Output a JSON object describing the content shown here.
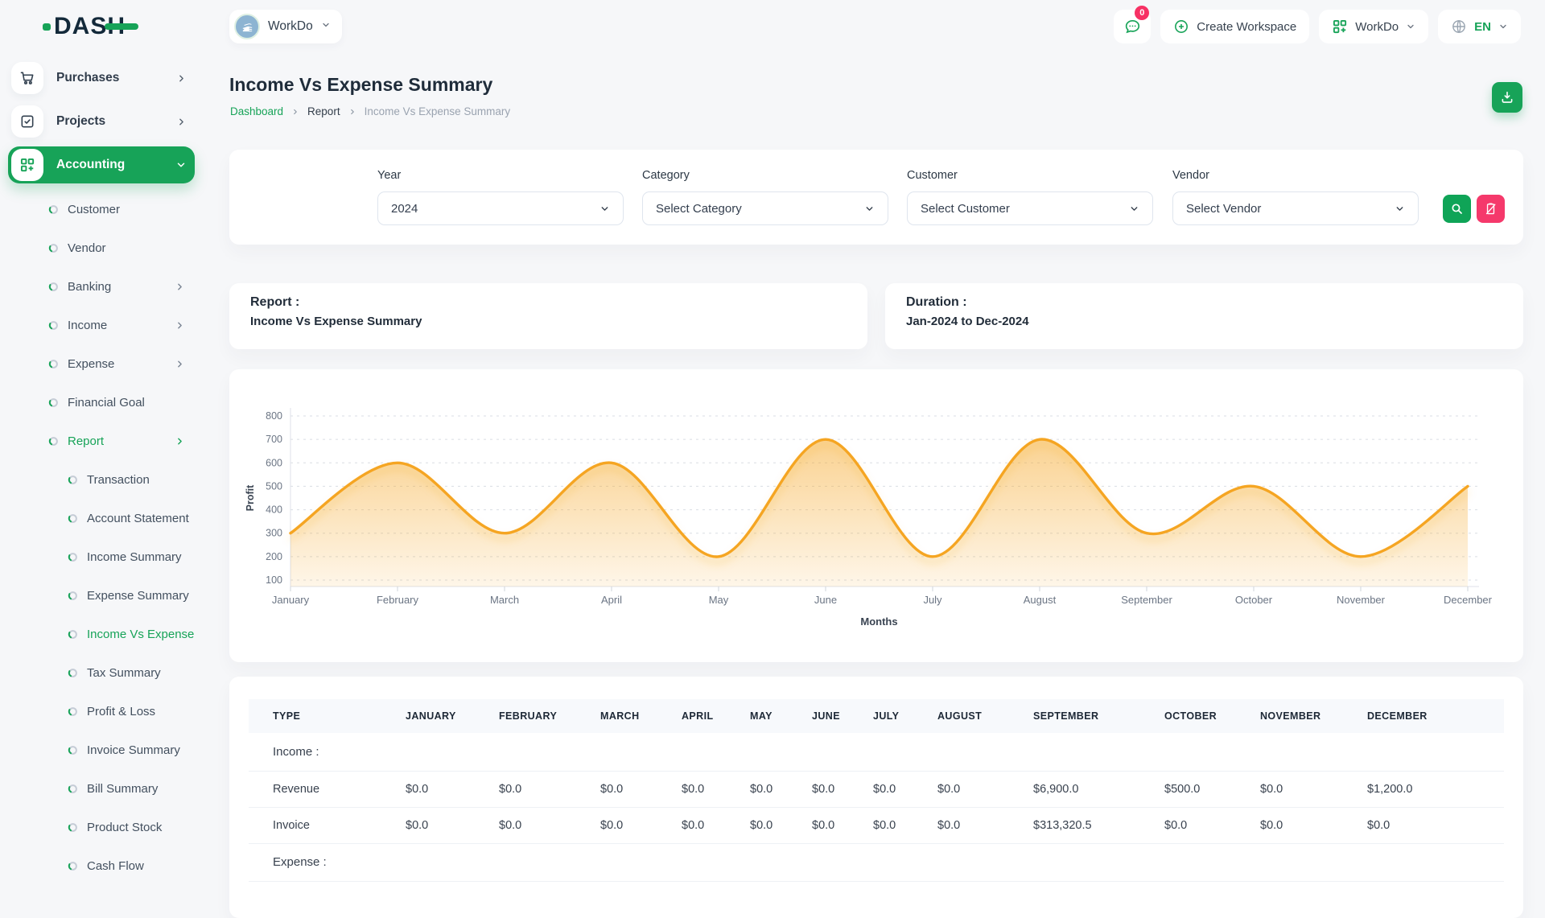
{
  "brand": {
    "name": "DASH"
  },
  "header": {
    "workspace_switcher_label": "WorkDo",
    "messages_badge": "0",
    "create_workspace_label": "Create Workspace",
    "app_menu_label": "WorkDo",
    "language": "EN"
  },
  "sidebar": {
    "items": [
      {
        "label": "Purchases",
        "level": "top",
        "icon": "cart-icon",
        "chevron": "right"
      },
      {
        "label": "Projects",
        "level": "top",
        "icon": "check-square-icon",
        "chevron": "right"
      },
      {
        "label": "Accounting",
        "level": "top",
        "icon": "grid-plus-icon",
        "chevron": "down",
        "active": true
      },
      {
        "label": "Customer",
        "level": "sub"
      },
      {
        "label": "Vendor",
        "level": "sub"
      },
      {
        "label": "Banking",
        "level": "sub",
        "chevron": "right"
      },
      {
        "label": "Income",
        "level": "sub",
        "chevron": "right"
      },
      {
        "label": "Expense",
        "level": "sub",
        "chevron": "right"
      },
      {
        "label": "Financial Goal",
        "level": "sub"
      },
      {
        "label": "Report",
        "level": "sub",
        "chevron": "right",
        "active": true
      },
      {
        "label": "Transaction",
        "level": "subsub"
      },
      {
        "label": "Account Statement",
        "level": "subsub"
      },
      {
        "label": "Income Summary",
        "level": "subsub"
      },
      {
        "label": "Expense Summary",
        "level": "subsub"
      },
      {
        "label": "Income Vs Expense",
        "level": "subsub",
        "active": true
      },
      {
        "label": "Tax Summary",
        "level": "subsub"
      },
      {
        "label": "Profit & Loss",
        "level": "subsub"
      },
      {
        "label": "Invoice Summary",
        "level": "subsub"
      },
      {
        "label": "Bill Summary",
        "level": "subsub"
      },
      {
        "label": "Product Stock",
        "level": "subsub"
      },
      {
        "label": "Cash Flow",
        "level": "subsub"
      }
    ]
  },
  "page": {
    "title": "Income Vs Expense Summary",
    "breadcrumb": [
      "Dashboard",
      "Report",
      "Income Vs Expense Summary"
    ]
  },
  "filters": {
    "fields": [
      {
        "label": "Year",
        "value": "2024"
      },
      {
        "label": "Category",
        "value": "Select Category"
      },
      {
        "label": "Customer",
        "value": "Select Customer"
      },
      {
        "label": "Vendor",
        "value": "Select Vendor"
      }
    ]
  },
  "report_card": {
    "label": "Report :",
    "value": "Income Vs Expense Summary"
  },
  "duration_card": {
    "label": "Duration :",
    "value": "Jan-2024 to Dec-2024"
  },
  "chart_data": {
    "type": "area",
    "x": [
      "January",
      "February",
      "March",
      "April",
      "May",
      "June",
      "July",
      "August",
      "September",
      "October",
      "November",
      "December"
    ],
    "series": [
      {
        "name": "Profit",
        "values": [
          300,
          600,
          300,
          600,
          200,
          700,
          200,
          700,
          300,
          500,
          200,
          500
        ]
      }
    ],
    "xlabel": "Months",
    "ylabel": "Profit",
    "ylim": [
      100,
      800
    ],
    "yticks": [
      800,
      700,
      600,
      500,
      400,
      300,
      200,
      100
    ],
    "grid": "dashed-horizontal",
    "legend": "none",
    "line_color": "#f5a522",
    "fill": "orange-gradient"
  },
  "table": {
    "headers": [
      "TYPE",
      "JANUARY",
      "FEBRUARY",
      "MARCH",
      "APRIL",
      "MAY",
      "JUNE",
      "JULY",
      "AUGUST",
      "SEPTEMBER",
      "OCTOBER",
      "NOVEMBER",
      "DECEMBER"
    ],
    "rows": [
      {
        "kind": "section",
        "label": "Income :"
      },
      {
        "kind": "data",
        "label": "Revenue",
        "values": [
          "$0.0",
          "$0.0",
          "$0.0",
          "$0.0",
          "$0.0",
          "$0.0",
          "$0.0",
          "$0.0",
          "$6,900.0",
          "$500.0",
          "$0.0",
          "$1,200.0"
        ]
      },
      {
        "kind": "data",
        "label": "Invoice",
        "values": [
          "$0.0",
          "$0.0",
          "$0.0",
          "$0.0",
          "$0.0",
          "$0.0",
          "$0.0",
          "$0.0",
          "$313,320.5",
          "$0.0",
          "$0.0",
          "$0.0"
        ]
      },
      {
        "kind": "section",
        "label": "Expense :"
      }
    ]
  },
  "colors": {
    "primary_green": "#17a358",
    "accent_pink": "#f5396b",
    "badge_pink": "#f73164",
    "chart_orange": "#f5a522"
  }
}
